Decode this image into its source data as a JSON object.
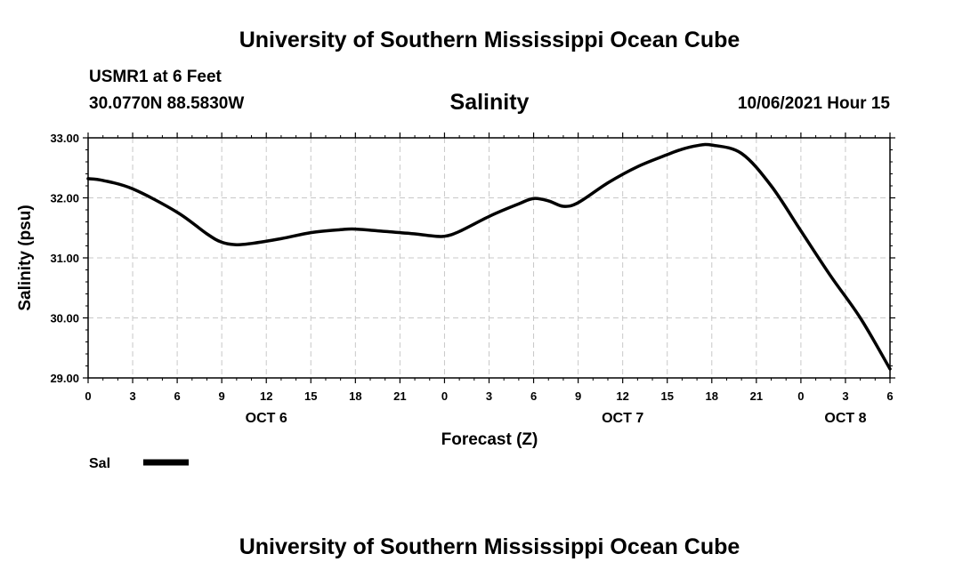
{
  "header": {
    "title": "University of Southern Mississippi Ocean Cube",
    "station": "USMR1 at 6 Feet",
    "coords": "30.0770N  88.5830W",
    "datetime": "10/06/2021 Hour 15"
  },
  "footer": {
    "title": "University of Southern Mississippi Ocean Cube"
  },
  "chart_data": {
    "type": "line",
    "title": "Salinity",
    "ylabel": "Salinity (psu)",
    "xlabel": "Forecast (Z)",
    "ylim": [
      29.0,
      33.0
    ],
    "yticks": [
      "29.00",
      "30.00",
      "31.00",
      "32.00",
      "33.00"
    ],
    "xlim": [
      0,
      54
    ],
    "xticks": [
      "0",
      "3",
      "6",
      "9",
      "12",
      "15",
      "18",
      "21",
      "0",
      "3",
      "6",
      "9",
      "12",
      "15",
      "18",
      "21",
      "0",
      "3",
      "6"
    ],
    "date_labels": [
      {
        "label": "OCT 6",
        "hour": 12
      },
      {
        "label": "OCT 7",
        "hour": 36
      },
      {
        "label": "OCT 8",
        "hour": 51
      }
    ],
    "grid": true,
    "legend": {
      "label": "Sal",
      "position": "bottom-left"
    },
    "series": [
      {
        "name": "Sal",
        "x": [
          0,
          1,
          3,
          6,
          8,
          9,
          10,
          11,
          13,
          15,
          17,
          18,
          20,
          22,
          23,
          24,
          25,
          27,
          29,
          30,
          31,
          32,
          33,
          35,
          37,
          39,
          40,
          41,
          42,
          44,
          46,
          48,
          50,
          52,
          54
        ],
        "values": [
          32.32,
          32.29,
          32.15,
          31.76,
          31.4,
          31.26,
          31.22,
          31.24,
          31.32,
          31.42,
          31.47,
          31.48,
          31.44,
          31.4,
          31.37,
          31.36,
          31.44,
          31.69,
          31.9,
          31.99,
          31.95,
          31.86,
          31.92,
          32.25,
          32.52,
          32.72,
          32.81,
          32.87,
          32.88,
          32.74,
          32.2,
          31.45,
          30.7,
          30.0,
          29.15
        ]
      }
    ]
  }
}
